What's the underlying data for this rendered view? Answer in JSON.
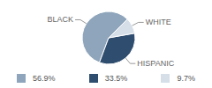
{
  "chart_data": {
    "type": "pie",
    "categories": [
      "BLACK",
      "HISPANIC",
      "WHITE"
    ],
    "values": [
      56.9,
      33.5,
      9.7
    ],
    "value_labels": [
      "56.9%",
      "33.5%",
      "9.7%"
    ],
    "colors": [
      "#8fa5bb",
      "#2f4d6f",
      "#d6dfe8"
    ],
    "legend": "bottom"
  }
}
